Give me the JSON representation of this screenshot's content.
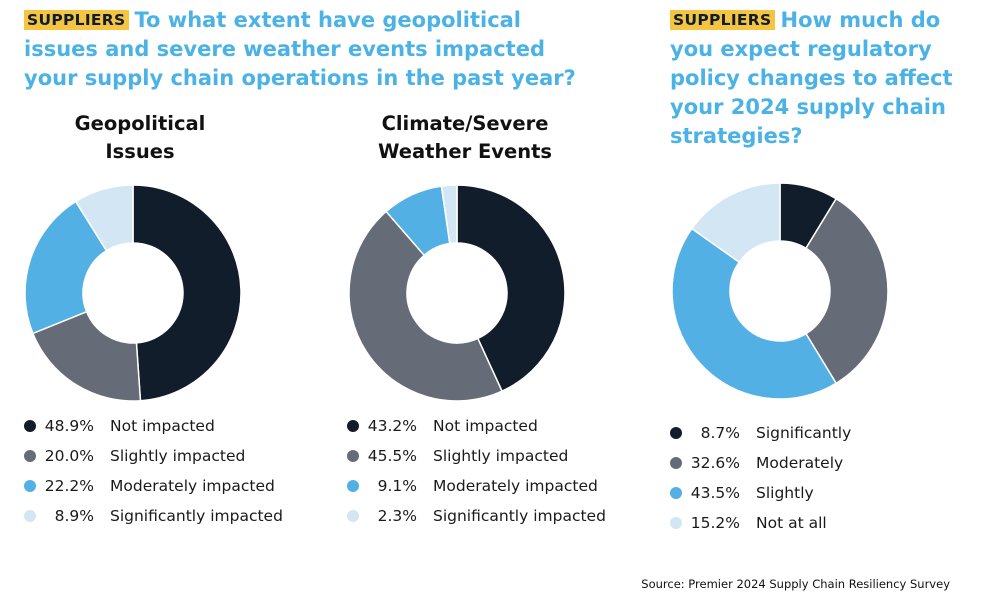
{
  "left_header": {
    "badge": "SUPPLIERS",
    "line1": "To what extent have geopolitical",
    "line2": "issues and severe weather events impacted",
    "line3": "your supply chain operations in the past year?"
  },
  "right_header": {
    "badge": "SUPPLIERS",
    "line1": "How much do",
    "line2": "you expect regulatory",
    "line3": "policy changes to affect",
    "line4": "your 2024 supply chain",
    "line5": "strategies?"
  },
  "colors": {
    "header_blue": "#4bb2e5",
    "badge_yellow": "#f5c542",
    "navy": "#121d2b",
    "gray": "#666c77",
    "blue": "#53b0e4",
    "light_blue": "#d3e6f4"
  },
  "chart_data": [
    {
      "type": "pie",
      "title_line1": "Geopolitical",
      "title_line2": "Issues",
      "categories": [
        "Not impacted",
        "Slightly impacted",
        "Moderately impacted",
        "Significantly impacted"
      ],
      "values": [
        48.9,
        20.0,
        22.2,
        8.9
      ],
      "labels": [
        "48.9%",
        "20.0%",
        "22.2%",
        "8.9%"
      ],
      "colors": [
        "#121d2b",
        "#666c77",
        "#53b0e4",
        "#d3e6f4"
      ]
    },
    {
      "type": "pie",
      "title_line1": "Climate/Severe",
      "title_line2": "Weather Events",
      "categories": [
        "Not impacted",
        "Slightly impacted",
        "Moderately impacted",
        "Significantly impacted"
      ],
      "values": [
        43.2,
        45.5,
        9.1,
        2.3
      ],
      "labels": [
        "43.2%",
        "45.5%",
        "9.1%",
        "2.3%"
      ],
      "colors": [
        "#121d2b",
        "#666c77",
        "#53b0e4",
        "#d3e6f4"
      ]
    },
    {
      "type": "pie",
      "categories": [
        "Significantly",
        "Moderately",
        "Slightly",
        "Not at all"
      ],
      "values": [
        8.7,
        32.6,
        43.5,
        15.2
      ],
      "labels": [
        "8.7%",
        "32.6%",
        "43.5%",
        "15.2%"
      ],
      "colors": [
        "#121d2b",
        "#666c77",
        "#53b0e4",
        "#d3e6f4"
      ]
    }
  ],
  "source": "Source: Premier 2024 Supply Chain Resiliency Survey"
}
